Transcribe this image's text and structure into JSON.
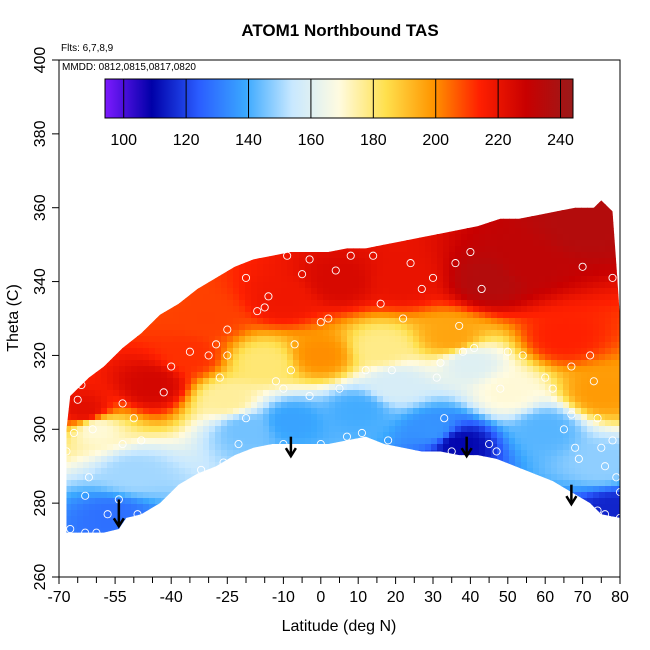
{
  "chart_data": {
    "type": "heatmap",
    "title": "ATOM1 Northbound TAS",
    "flights_note": "Flts: 6,7,8,9",
    "dates_note": "MMDD: 0812,0815,0817,0820",
    "xlabel": "Latitude (deg N)",
    "ylabel": "Theta (C)",
    "xlim": [
      -70,
      80
    ],
    "ylim": [
      260,
      400
    ],
    "x_ticks_major": [
      -70,
      -55,
      -40,
      -25,
      -10,
      0,
      10,
      20,
      30,
      40,
      50,
      60,
      70,
      80
    ],
    "x_ticks_minor": [
      -65,
      -60,
      -50,
      -45,
      -35,
      -30,
      -20,
      -15,
      -5,
      5,
      15,
      25,
      35,
      45,
      55,
      65,
      75
    ],
    "y_ticks": [
      260,
      280,
      300,
      320,
      340,
      360,
      380,
      400
    ],
    "colorbar": {
      "min": 94,
      "max": 244,
      "ticks": [
        100,
        120,
        140,
        160,
        180,
        200,
        220,
        240
      ],
      "colors": [
        "#7d1aff",
        "#0000a8",
        "#2a5cff",
        "#3aa8ff",
        "#c8e8ff",
        "#fffbe0",
        "#ffe04d",
        "#ff9600",
        "#ff2000",
        "#c80000",
        "#9b1a1a"
      ]
    },
    "upper_boundary": [
      [
        -68,
        300
      ],
      [
        -67,
        309
      ],
      [
        -62,
        314
      ],
      [
        -58,
        317
      ],
      [
        -53,
        322
      ],
      [
        -48,
        326
      ],
      [
        -43,
        331
      ],
      [
        -38,
        334
      ],
      [
        -33,
        338
      ],
      [
        -28,
        341
      ],
      [
        -23,
        344
      ],
      [
        -18,
        346
      ],
      [
        -13,
        347
      ],
      [
        -8,
        348
      ],
      [
        -3,
        348
      ],
      [
        2,
        348
      ],
      [
        7,
        349
      ],
      [
        12,
        349
      ],
      [
        17,
        350
      ],
      [
        22,
        351
      ],
      [
        27,
        352
      ],
      [
        32,
        353
      ],
      [
        37,
        354
      ],
      [
        42,
        355
      ],
      [
        48,
        357
      ],
      [
        53,
        357
      ],
      [
        58,
        358
      ],
      [
        63,
        359
      ],
      [
        68,
        360
      ],
      [
        73,
        360
      ],
      [
        75,
        362
      ],
      [
        78,
        359
      ],
      [
        79,
        345
      ],
      [
        80,
        330
      ],
      [
        80,
        276
      ]
    ],
    "lower_boundary": [
      [
        -68,
        272
      ],
      [
        -58,
        272
      ],
      [
        -54,
        273
      ],
      [
        -52,
        276
      ],
      [
        -48,
        277
      ],
      [
        -43,
        280
      ],
      [
        -38,
        285
      ],
      [
        -33,
        288
      ],
      [
        -28,
        290
      ],
      [
        -23,
        293
      ],
      [
        -18,
        295
      ],
      [
        -13,
        296
      ],
      [
        -8,
        296
      ],
      [
        -3,
        296
      ],
      [
        2,
        296
      ],
      [
        7,
        297
      ],
      [
        12,
        298
      ],
      [
        17,
        296
      ],
      [
        22,
        295
      ],
      [
        27,
        294
      ],
      [
        32,
        294
      ],
      [
        37,
        293
      ],
      [
        42,
        293
      ],
      [
        47,
        292
      ],
      [
        52,
        290
      ],
      [
        57,
        288
      ],
      [
        62,
        286
      ],
      [
        67,
        283
      ],
      [
        72,
        280
      ],
      [
        75,
        277
      ],
      [
        80,
        276
      ]
    ],
    "surface_fields": [
      {
        "x": -60,
        "y": 300,
        "value": 170
      },
      {
        "x": -50,
        "y": 288,
        "value": 150
      },
      {
        "x": -55,
        "y": 276,
        "value": 128
      },
      {
        "x": -63,
        "y": 305,
        "value": 222
      },
      {
        "x": -45,
        "y": 312,
        "value": 226
      },
      {
        "x": -35,
        "y": 320,
        "value": 212
      },
      {
        "x": -30,
        "y": 330,
        "value": 210
      },
      {
        "x": -25,
        "y": 308,
        "value": 176
      },
      {
        "x": -20,
        "y": 300,
        "value": 145
      },
      {
        "x": -15,
        "y": 318,
        "value": 180
      },
      {
        "x": -10,
        "y": 335,
        "value": 218
      },
      {
        "x": -8,
        "y": 302,
        "value": 138
      },
      {
        "x": 0,
        "y": 320,
        "value": 200
      },
      {
        "x": 5,
        "y": 340,
        "value": 225
      },
      {
        "x": 10,
        "y": 305,
        "value": 140
      },
      {
        "x": 16,
        "y": 322,
        "value": 178
      },
      {
        "x": 20,
        "y": 312,
        "value": 158
      },
      {
        "x": 22,
        "y": 340,
        "value": 220
      },
      {
        "x": 30,
        "y": 300,
        "value": 135
      },
      {
        "x": 35,
        "y": 325,
        "value": 196
      },
      {
        "x": 37,
        "y": 296,
        "value": 110
      },
      {
        "x": 40,
        "y": 318,
        "value": 160
      },
      {
        "x": 45,
        "y": 340,
        "value": 236
      },
      {
        "x": 50,
        "y": 310,
        "value": 170
      },
      {
        "x": 55,
        "y": 345,
        "value": 232
      },
      {
        "x": 60,
        "y": 300,
        "value": 142
      },
      {
        "x": 65,
        "y": 325,
        "value": 214
      },
      {
        "x": 70,
        "y": 355,
        "value": 236
      },
      {
        "x": 75,
        "y": 290,
        "value": 148
      },
      {
        "x": 78,
        "y": 278,
        "value": 115
      },
      {
        "x": 75,
        "y": 310,
        "value": 198
      }
    ],
    "observation_points": [
      [
        -68,
        294
      ],
      [
        -66,
        299
      ],
      [
        -65,
        308
      ],
      [
        -64,
        312
      ],
      [
        -61,
        300
      ],
      [
        -62,
        287
      ],
      [
        -63,
        282
      ],
      [
        -67,
        273
      ],
      [
        -63,
        272
      ],
      [
        -60,
        272
      ],
      [
        -57,
        277
      ],
      [
        -54,
        281
      ],
      [
        -52,
        272
      ],
      [
        -49,
        277
      ],
      [
        -53,
        296
      ],
      [
        -50,
        303
      ],
      [
        -53,
        307
      ],
      [
        -48,
        297
      ],
      [
        -42,
        310
      ],
      [
        -40,
        317
      ],
      [
        -35,
        321
      ],
      [
        -30,
        320
      ],
      [
        -28,
        323
      ],
      [
        -25,
        320
      ],
      [
        -27,
        314
      ],
      [
        -25,
        327
      ],
      [
        -20,
        303
      ],
      [
        -22,
        296
      ],
      [
        -26,
        291
      ],
      [
        -32,
        289
      ],
      [
        -20,
        341
      ],
      [
        -17,
        332
      ],
      [
        -15,
        333
      ],
      [
        -14,
        336
      ],
      [
        -12,
        313
      ],
      [
        -10,
        311
      ],
      [
        -8,
        316
      ],
      [
        -9,
        347
      ],
      [
        -7,
        323
      ],
      [
        -5,
        342
      ],
      [
        -3,
        346
      ],
      [
        0,
        329
      ],
      [
        2,
        330
      ],
      [
        4,
        343
      ],
      [
        8,
        347
      ],
      [
        -10,
        296
      ],
      [
        0,
        296
      ],
      [
        -3,
        309
      ],
      [
        5,
        311
      ],
      [
        7,
        298
      ],
      [
        11,
        299
      ],
      [
        12,
        316
      ],
      [
        14,
        347
      ],
      [
        16,
        334
      ],
      [
        18,
        297
      ],
      [
        19,
        316
      ],
      [
        22,
        330
      ],
      [
        24,
        345
      ],
      [
        27,
        338
      ],
      [
        30,
        341
      ],
      [
        31,
        314
      ],
      [
        32,
        318
      ],
      [
        33,
        303
      ],
      [
        35,
        294
      ],
      [
        36,
        345
      ],
      [
        37,
        328
      ],
      [
        38,
        321
      ],
      [
        40,
        348
      ],
      [
        41,
        322
      ],
      [
        43,
        338
      ],
      [
        45,
        296
      ],
      [
        47,
        294
      ],
      [
        48,
        311
      ],
      [
        50,
        321
      ],
      [
        54,
        320
      ],
      [
        60,
        314
      ],
      [
        62,
        311
      ],
      [
        65,
        300
      ],
      [
        67,
        304
      ],
      [
        67,
        317
      ],
      [
        68,
        295
      ],
      [
        69,
        292
      ],
      [
        70,
        344
      ],
      [
        72,
        320
      ],
      [
        73,
        313
      ],
      [
        74,
        303
      ],
      [
        75,
        295
      ],
      [
        76,
        290
      ],
      [
        78,
        297
      ],
      [
        79,
        287
      ],
      [
        80,
        283
      ],
      [
        80,
        276
      ],
      [
        74,
        278
      ],
      [
        76,
        277
      ],
      [
        78,
        341
      ]
    ],
    "markers": [
      {
        "x": -54,
        "y_top": 281,
        "y_bottom": 274
      },
      {
        "x": -8,
        "y_top": 298,
        "y_bottom": 293
      },
      {
        "x": 39,
        "y_top": 298,
        "y_bottom": 293
      },
      {
        "x": 67,
        "y_top": 285,
        "y_bottom": 280
      }
    ]
  }
}
